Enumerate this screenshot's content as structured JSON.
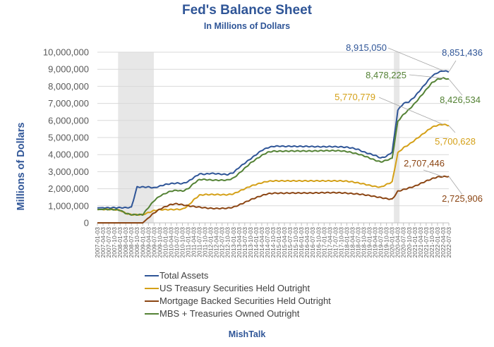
{
  "chart_data": {
    "type": "line",
    "title": "Fed's Balance Sheet",
    "subtitle": "In Millions of Dollars",
    "xlabel": "",
    "ylabel": "Millions of Dollars",
    "ylim": [
      0,
      10000000
    ],
    "yticks": [
      0,
      1000000,
      2000000,
      3000000,
      4000000,
      5000000,
      6000000,
      7000000,
      8000000,
      9000000,
      10000000
    ],
    "ytick_labels": [
      "0",
      "1,000,000",
      "2,000,000",
      "3,000,000",
      "4,000,000",
      "5,000,000",
      "6,000,000",
      "7,000,000",
      "8,000,000",
      "9,000,000",
      "10,000,000"
    ],
    "grid": true,
    "legend_position": "bottom",
    "x": [
      "2007-01-03",
      "2007-04-03",
      "2007-07-03",
      "2007-10-03",
      "2008-01-03",
      "2008-04-03",
      "2008-07-03",
      "2008-10-03",
      "2009-01-03",
      "2009-04-03",
      "2009-07-03",
      "2009-10-03",
      "2010-01-03",
      "2010-04-03",
      "2010-07-03",
      "2010-10-03",
      "2011-01-03",
      "2011-04-03",
      "2011-07-03",
      "2011-10-03",
      "2012-01-03",
      "2012-04-03",
      "2012-07-03",
      "2012-10-03",
      "2013-01-03",
      "2013-04-03",
      "2013-07-03",
      "2013-10-03",
      "2014-01-03",
      "2014-04-03",
      "2014-07-03",
      "2014-10-03",
      "2015-01-03",
      "2015-04-03",
      "2015-07-03",
      "2015-10-03",
      "2016-01-03",
      "2016-04-03",
      "2016-07-03",
      "2016-10-03",
      "2017-01-03",
      "2017-04-03",
      "2017-07-03",
      "2017-10-03",
      "2018-01-03",
      "2018-04-03",
      "2018-07-03",
      "2018-10-03",
      "2019-01-03",
      "2019-04-03",
      "2019-07-03",
      "2019-10-03",
      "2020-01-03",
      "2020-04-03",
      "2020-07-03",
      "2020-10-03",
      "2021-01-03",
      "2021-04-03",
      "2021-07-03",
      "2021-10-03",
      "2022-01-03",
      "2022-04-03",
      "2022-07-03"
    ],
    "shaded_periods": [
      {
        "start": "2007-12-01",
        "end": "2009-06-30",
        "label": "recession"
      },
      {
        "start": "2020-02-01",
        "end": "2020-04-30",
        "label": "recession"
      }
    ],
    "series": [
      {
        "name": "Total Assets",
        "color": "#2f5597",
        "values": [
          880000,
          890000,
          880000,
          890000,
          890000,
          890000,
          910000,
          2100000,
          2100000,
          2100000,
          2050000,
          2150000,
          2250000,
          2300000,
          2330000,
          2300000,
          2420000,
          2650000,
          2870000,
          2850000,
          2900000,
          2880000,
          2850000,
          2830000,
          2950000,
          3250000,
          3500000,
          3750000,
          4000000,
          4250000,
          4400000,
          4480000,
          4500000,
          4480000,
          4490000,
          4480000,
          4480000,
          4480000,
          4470000,
          4460000,
          4460000,
          4470000,
          4460000,
          4450000,
          4430000,
          4380000,
          4300000,
          4150000,
          4050000,
          3950000,
          3800000,
          3900000,
          4150000,
          6600000,
          7000000,
          7100000,
          7400000,
          7800000,
          8200000,
          8600000,
          8800000,
          8915050,
          8851436
        ]
      },
      {
        "name": "US Treasury Securities Held Outright",
        "color": "#d4a017",
        "values": [
          780000,
          790000,
          790000,
          780000,
          740000,
          560000,
          480000,
          480000,
          480000,
          600000,
          720000,
          770000,
          780000,
          780000,
          790000,
          800000,
          1000000,
          1350000,
          1620000,
          1660000,
          1660000,
          1660000,
          1650000,
          1650000,
          1700000,
          1850000,
          2000000,
          2150000,
          2250000,
          2350000,
          2430000,
          2460000,
          2460000,
          2460000,
          2460000,
          2460000,
          2460000,
          2460000,
          2460000,
          2460000,
          2460000,
          2460000,
          2460000,
          2460000,
          2440000,
          2400000,
          2340000,
          2280000,
          2200000,
          2130000,
          2090000,
          2250000,
          2400000,
          4100000,
          4400000,
          4600000,
          4850000,
          5100000,
          5350000,
          5600000,
          5720000,
          5770779,
          5700628
        ]
      },
      {
        "name": "Mortgage Backed Securities Held Outright",
        "color": "#8b4513",
        "values": [
          0,
          0,
          0,
          0,
          0,
          0,
          0,
          0,
          0,
          300000,
          580000,
          800000,
          950000,
          1080000,
          1120000,
          1060000,
          1000000,
          960000,
          920000,
          880000,
          850000,
          840000,
          850000,
          860000,
          920000,
          1050000,
          1200000,
          1350000,
          1480000,
          1600000,
          1700000,
          1740000,
          1740000,
          1740000,
          1750000,
          1750000,
          1750000,
          1750000,
          1750000,
          1760000,
          1770000,
          1770000,
          1770000,
          1760000,
          1740000,
          1710000,
          1690000,
          1650000,
          1600000,
          1540000,
          1480000,
          1420000,
          1380000,
          1850000,
          1950000,
          2050000,
          2150000,
          2300000,
          2450000,
          2580000,
          2690000,
          2707446,
          2725906
        ]
      },
      {
        "name": "MBS + Treasuries Owned Outright",
        "color": "#548235",
        "values": [
          780000,
          790000,
          790000,
          780000,
          740000,
          560000,
          480000,
          480000,
          480000,
          900000,
          1300000,
          1570000,
          1730000,
          1860000,
          1910000,
          1860000,
          2000000,
          2310000,
          2540000,
          2540000,
          2510000,
          2500000,
          2500000,
          2510000,
          2620000,
          2900000,
          3200000,
          3500000,
          3730000,
          3950000,
          4130000,
          4200000,
          4200000,
          4200000,
          4210000,
          4210000,
          4210000,
          4210000,
          4210000,
          4220000,
          4230000,
          4230000,
          4230000,
          4220000,
          4180000,
          4110000,
          4030000,
          3930000,
          3800000,
          3670000,
          3570000,
          3670000,
          3780000,
          5950000,
          6350000,
          6650000,
          7000000,
          7400000,
          7800000,
          8200000,
          8410000,
          8478225,
          8426534
        ]
      }
    ],
    "annotations": [
      {
        "text": "8,915,050",
        "series": "Total Assets",
        "color": "#2f5597"
      },
      {
        "text": "8,851,436",
        "series": "Total Assets",
        "color": "#2f5597"
      },
      {
        "text": "8,478,225",
        "series": "MBS + Treasuries Owned Outright",
        "color": "#548235"
      },
      {
        "text": "8,426,534",
        "series": "MBS + Treasuries Owned Outright",
        "color": "#548235"
      },
      {
        "text": "5,770,779",
        "series": "US Treasury Securities Held Outright",
        "color": "#d4a017"
      },
      {
        "text": "5,700,628",
        "series": "US Treasury Securities Held Outright",
        "color": "#d4a017"
      },
      {
        "text": "2,707,446",
        "series": "Mortgage Backed Securities Held Outright",
        "color": "#8b4513"
      },
      {
        "text": "2,725,906",
        "series": "Mortgage Backed Securities Held Outright",
        "color": "#8b4513"
      }
    ]
  },
  "footer": "MishTalk"
}
